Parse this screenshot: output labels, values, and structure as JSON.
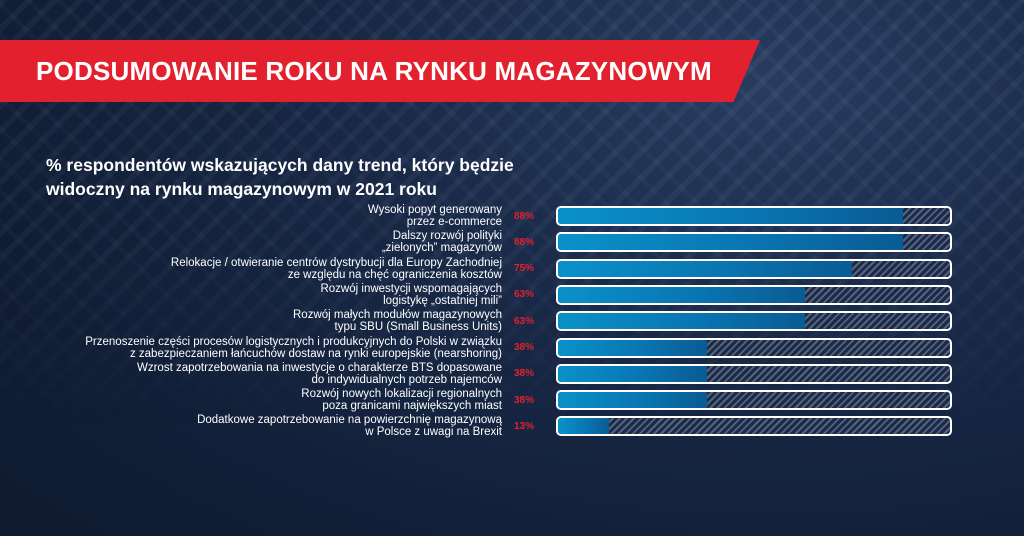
{
  "header": {
    "title": "PODSUMOWANIE ROKU NA RYNKU MAGAZYNOWYM",
    "subtitle_line1": "% respondentów wskazujących dany trend, który będzie",
    "subtitle_line2": "widoczny na rynku magazynowym w 2021 roku"
  },
  "colors": {
    "accent": "#e3202d",
    "bar_fill": "#0a85bf",
    "background": "#16243f"
  },
  "chart_data": {
    "type": "bar",
    "orientation": "horizontal",
    "title": "% respondentów wskazujących dany trend, który będzie widoczny na rynku magazynowym w 2021 roku",
    "xlim": [
      0,
      100
    ],
    "unit": "%",
    "categories": [
      [
        "Wysoki popyt generowany",
        "przez e-commerce"
      ],
      [
        "Dalszy rozwój polityki",
        "„zielonych” magazynów"
      ],
      [
        "Relokacje / otwieranie centrów dystrybucji dla Europy Zachodniej",
        "ze względu na chęć ograniczenia kosztów"
      ],
      [
        "Rozwój inwestycji wspomagających",
        "logistykę „ostatniej mili”"
      ],
      [
        "Rozwój małych modułów magazynowych",
        "typu SBU (Small Business Units)"
      ],
      [
        "Przenoszenie części procesów logistycznych i produkcyjnych do Polski w związku",
        "z zabezpieczaniem łańcuchów dostaw na rynki europejskie (nearshoring)"
      ],
      [
        "Wzrost zapotrzebowania na inwestycje o charakterze BTS dopasowane",
        "do indywidualnych potrzeb najemców"
      ],
      [
        "Rozwój nowych lokalizacji regionalnych",
        "poza granicami największych miast"
      ],
      [
        "Dodatkowe zapotrzebowanie na powierzchnię magazynową",
        "w Polsce z uwagi na Brexit"
      ]
    ],
    "values": [
      88,
      88,
      75,
      63,
      63,
      38,
      38,
      38,
      13
    ],
    "value_labels": [
      "88%",
      "88%",
      "75%",
      "63%",
      "63%",
      "38%",
      "38%",
      "38%",
      "13%"
    ]
  }
}
